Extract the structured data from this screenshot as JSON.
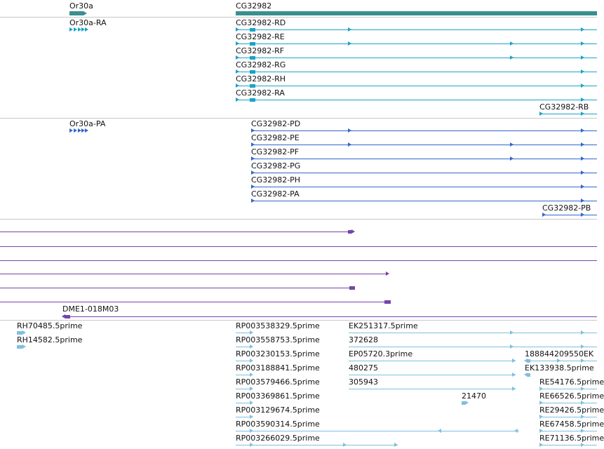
{
  "colors": {
    "gene": "#3a8f8f",
    "transcript": "#1aa3c7",
    "protein": "#3366cc",
    "clone": "#7744aa",
    "est": "#7ec0e0",
    "separator": "#c8c8c8"
  },
  "genes": {
    "or30a": "Or30a",
    "cg32982": "CG32982"
  },
  "transcripts": {
    "or30a_ra": "Or30a-RA",
    "cg32982_rd": "CG32982-RD",
    "cg32982_re": "CG32982-RE",
    "cg32982_rf": "CG32982-RF",
    "cg32982_rg": "CG32982-RG",
    "cg32982_rh": "CG32982-RH",
    "cg32982_ra": "CG32982-RA",
    "cg32982_rb": "CG32982-RB"
  },
  "proteins": {
    "or30a_pa": "Or30a-PA",
    "cg32982_pd": "CG32982-PD",
    "cg32982_pe": "CG32982-PE",
    "cg32982_pf": "CG32982-PF",
    "cg32982_pg": "CG32982-PG",
    "cg32982_ph": "CG32982-PH",
    "cg32982_pa": "CG32982-PA",
    "cg32982_pb": "CG32982-PB"
  },
  "clones": {
    "dme1": "DME1-018M03"
  },
  "ests": {
    "rh70485": "RH70485.5prime",
    "rh14582": "RH14582.5prime",
    "rp003538329": "RP003538329.5prime",
    "rp003558753": "RP003558753.5prime",
    "rp003230153": "RP003230153.5prime",
    "rp003188841": "RP003188841.5prime",
    "rp003579466": "RP003579466.5prime",
    "rp003369861": "RP003369861.5prime",
    "rp003129674": "RP003129674.5prime",
    "rp003590314": "RP003590314.5prime",
    "rp003266029": "RP003266029.5prime",
    "ek251317": "EK251317.5prime",
    "n372628": "372628",
    "ep05720": "EP05720.3prime",
    "n480275": "480275",
    "n305943": "305943",
    "n21470": "21470",
    "n188844209550": "188844209550EK",
    "ek133938": "EK133938.5prime",
    "re54176": "RE54176.5prime",
    "re66526": "RE66526.5prime",
    "re29426": "RE29426.5prime",
    "re67458": "RE67458.5prime",
    "re71136": "RE71136.5prime"
  }
}
